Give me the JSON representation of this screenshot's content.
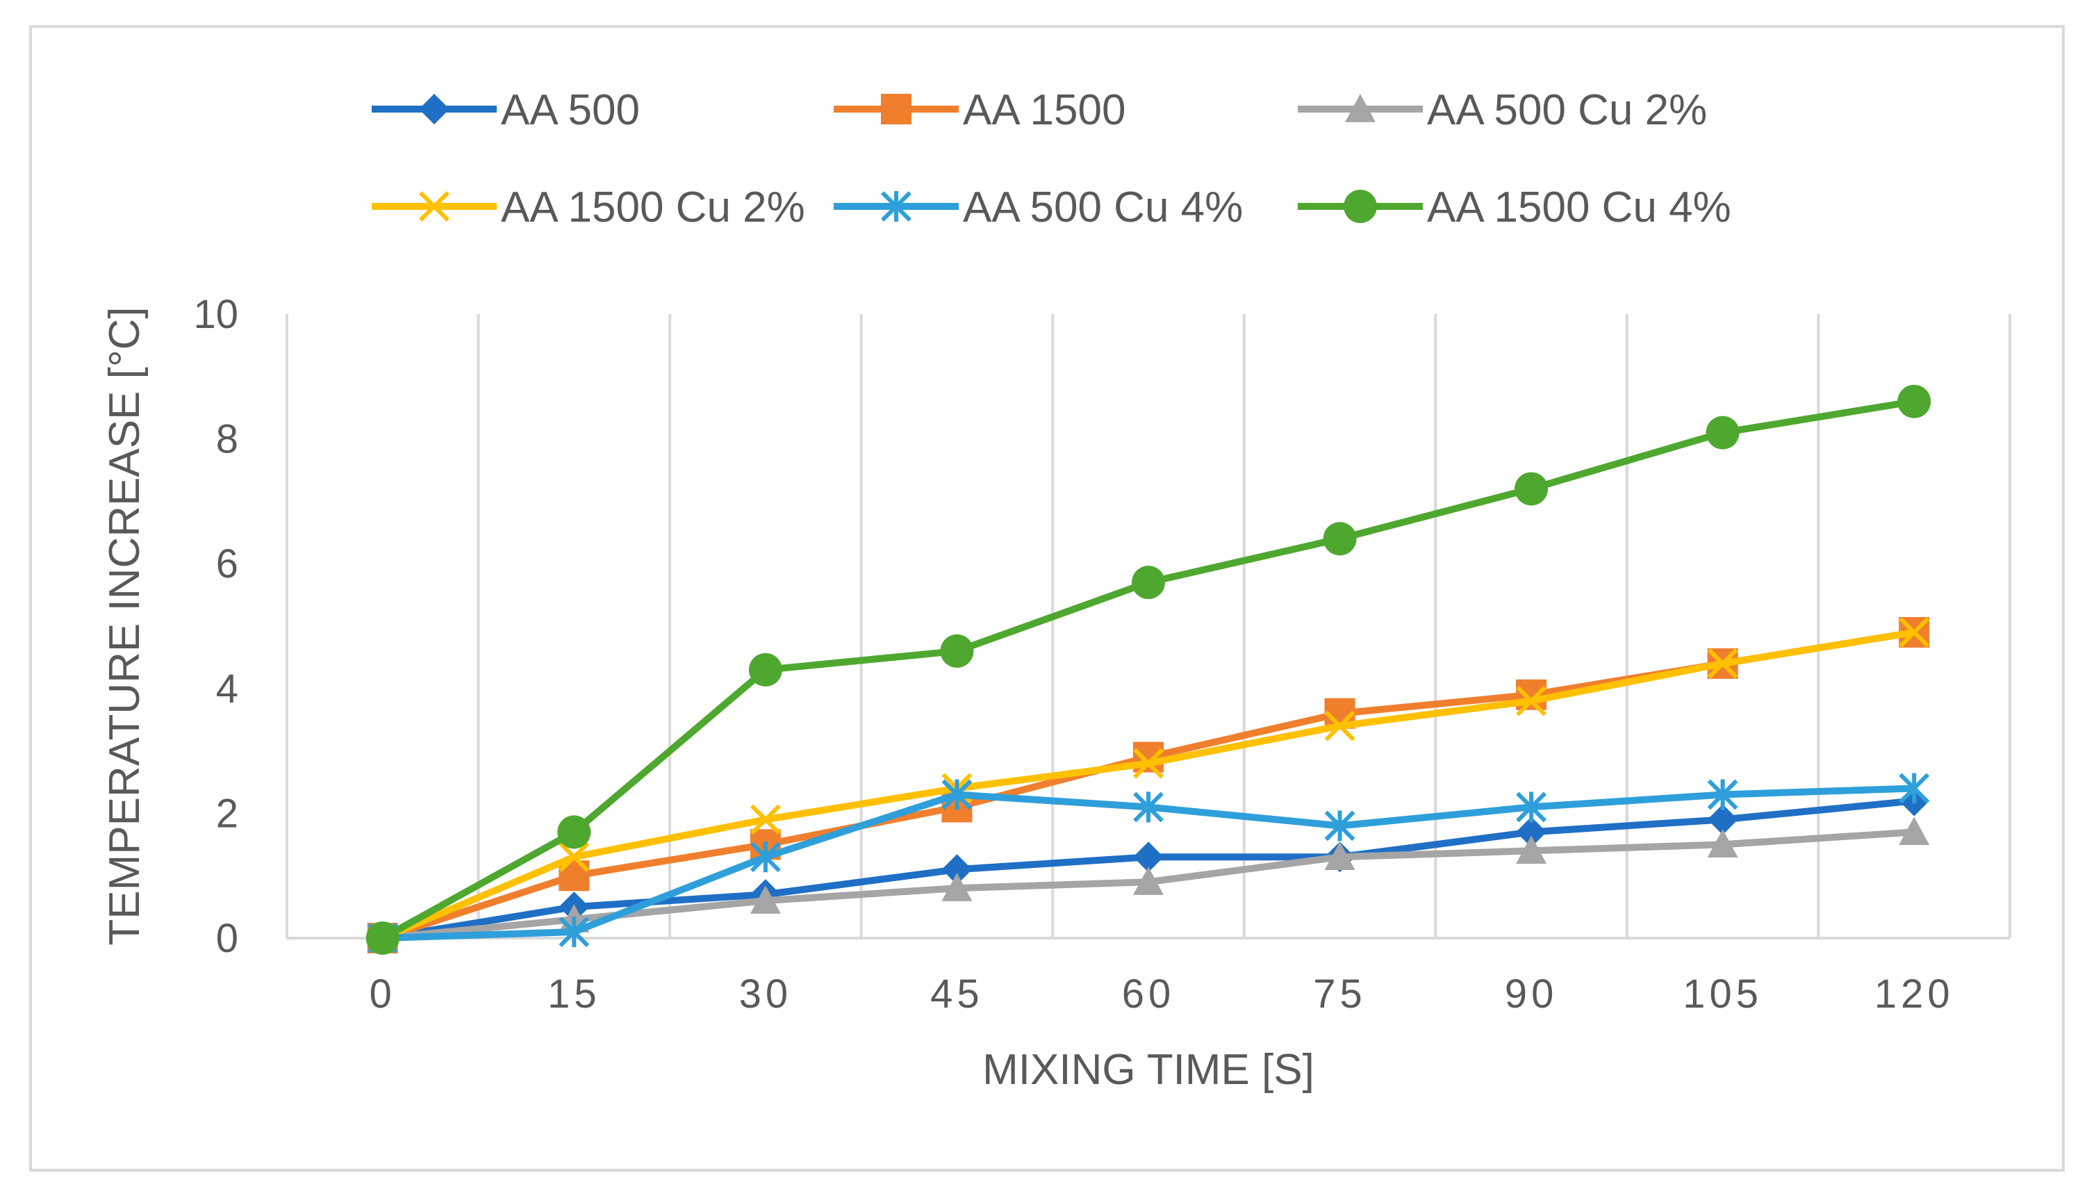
{
  "chart_data": {
    "type": "line",
    "title": "",
    "xlabel": "MIXING TIME [S]",
    "ylabel": "TEMPERATURE INCREASE [°C]",
    "categories": [
      "0",
      "15",
      "30",
      "45",
      "60",
      "75",
      "90",
      "105",
      "120"
    ],
    "ylim": [
      0,
      10
    ],
    "yticks": [
      "0",
      "2",
      "4",
      "6",
      "8",
      "10"
    ],
    "grid": "vertical",
    "legend_position": "top",
    "series": [
      {
        "name": "AA 500",
        "color": "#1f6fc5",
        "marker": "diamond",
        "values": [
          0,
          0.5,
          0.7,
          1.1,
          1.3,
          1.3,
          1.7,
          1.9,
          2.2
        ]
      },
      {
        "name": "AA 1500",
        "color": "#f07f2d",
        "marker": "square",
        "values": [
          0,
          1.0,
          1.5,
          2.1,
          2.9,
          3.6,
          3.9,
          4.4,
          4.9
        ]
      },
      {
        "name": "AA 500 Cu 2%",
        "color": "#a5a5a5",
        "marker": "triangle",
        "values": [
          0,
          0.3,
          0.6,
          0.8,
          0.9,
          1.3,
          1.4,
          1.5,
          1.7
        ]
      },
      {
        "name": "AA 1500 Cu 2%",
        "color": "#ffc000",
        "marker": "x",
        "values": [
          0,
          1.3,
          1.9,
          2.4,
          2.8,
          3.4,
          3.8,
          4.4,
          4.9
        ]
      },
      {
        "name": "AA 500 Cu 4%",
        "color": "#2e9fda",
        "marker": "star",
        "values": [
          0,
          0.1,
          1.3,
          2.3,
          2.1,
          1.8,
          2.1,
          2.3,
          2.4
        ]
      },
      {
        "name": "AA 1500 Cu 4%",
        "color": "#4ea82f",
        "marker": "circle",
        "values": [
          0,
          1.7,
          4.3,
          4.6,
          5.7,
          6.4,
          7.2,
          8.1,
          8.6
        ]
      }
    ]
  }
}
